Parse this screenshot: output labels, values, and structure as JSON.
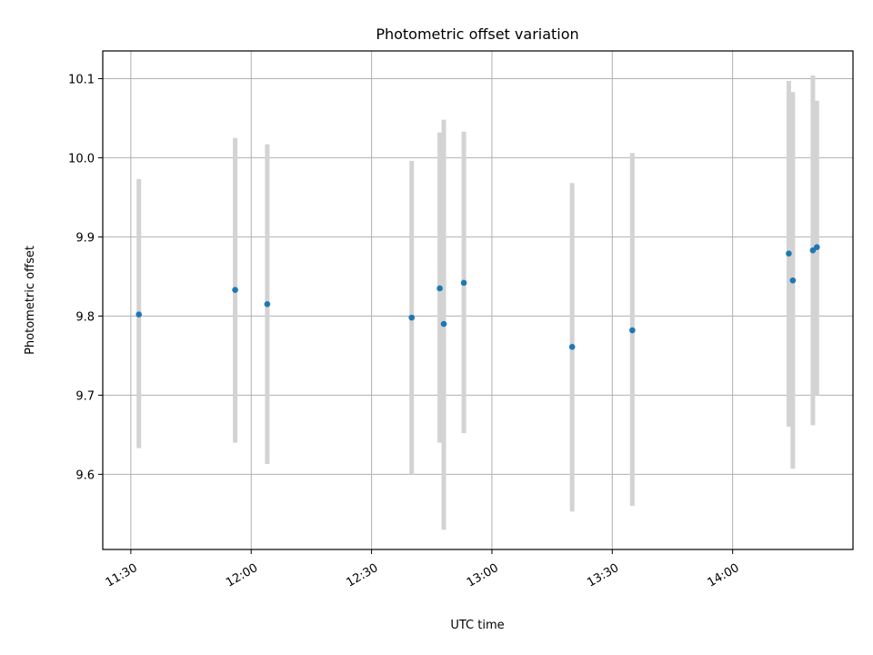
{
  "chart_data": {
    "type": "scatter",
    "title": "Photometric offset variation",
    "xlabel": "UTC time",
    "ylabel": "Photometric offset",
    "xlim": [
      "11:23",
      "14:30"
    ],
    "ylim": [
      9.505,
      10.135
    ],
    "grid": true,
    "x_ticks": [
      "11:30",
      "12:00",
      "12:30",
      "13:00",
      "13:30",
      "14:00"
    ],
    "y_ticks": [
      "9.6",
      "9.7",
      "9.8",
      "9.9",
      "10.0",
      "10.1"
    ],
    "errorbar_color": "#d3d3d3",
    "marker_color": "#1f77b4",
    "points": [
      {
        "time": "11:32",
        "y": 9.802,
        "ylow": 9.633,
        "yhigh": 9.973
      },
      {
        "time": "11:56",
        "y": 9.833,
        "ylow": 9.64,
        "yhigh": 10.025
      },
      {
        "time": "12:04",
        "y": 9.815,
        "ylow": 9.613,
        "yhigh": 10.017
      },
      {
        "time": "12:40",
        "y": 9.798,
        "ylow": 9.6,
        "yhigh": 9.996
      },
      {
        "time": "12:47",
        "y": 9.835,
        "ylow": 9.64,
        "yhigh": 10.032
      },
      {
        "time": "12:48",
        "y": 9.79,
        "ylow": 9.53,
        "yhigh": 10.048
      },
      {
        "time": "12:53",
        "y": 9.842,
        "ylow": 9.652,
        "yhigh": 10.033
      },
      {
        "time": "13:20",
        "y": 9.761,
        "ylow": 9.553,
        "yhigh": 9.968
      },
      {
        "time": "13:35",
        "y": 9.782,
        "ylow": 9.56,
        "yhigh": 10.006
      },
      {
        "time": "14:14",
        "y": 9.879,
        "ylow": 9.66,
        "yhigh": 10.097
      },
      {
        "time": "14:15",
        "y": 9.845,
        "ylow": 9.607,
        "yhigh": 10.083
      },
      {
        "time": "14:20",
        "y": 9.883,
        "ylow": 9.662,
        "yhigh": 10.104
      },
      {
        "time": "14:21",
        "y": 9.887,
        "ylow": 9.7,
        "yhigh": 10.072
      }
    ]
  }
}
